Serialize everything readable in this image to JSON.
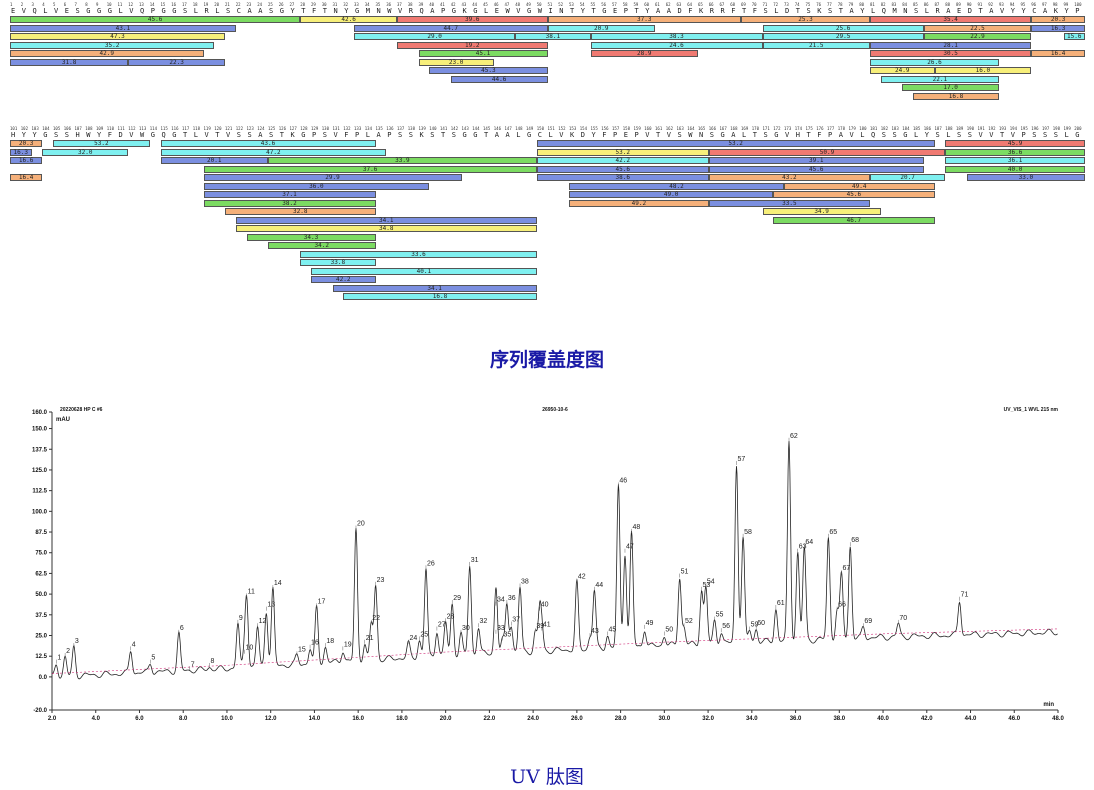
{
  "coverage": {
    "title": "序列覆盖度图",
    "colors": {
      "green": "#7cdb62",
      "yellow": "#f7ef7a",
      "red": "#f07a72",
      "blue": "#7b8fe0",
      "cyan": "#7ff0f0",
      "orange": "#f5b07a"
    },
    "rows": [
      {
        "start": 1,
        "end": 100,
        "sequence": "EVQLVESGGGLVQPGGSLRLSCAASGYTFTNYGMNWVRQAPGKGLEWVGWINTYTGEPTYAADFKRRFTFSLDTSKSTAYLQMNSLRAEDTAVYYCAKYP",
        "peptides": [
          {
            "s": 1,
            "e": 27,
            "v": "45.6",
            "c": "green",
            "l": 0
          },
          {
            "s": 28,
            "e": 36,
            "v": "42.6",
            "c": "yellow",
            "l": 0
          },
          {
            "s": 37,
            "e": 50,
            "v": "39.6",
            "c": "red",
            "l": 0
          },
          {
            "s": 51,
            "e": 68,
            "v": "37.3",
            "c": "orange",
            "l": 0
          },
          {
            "s": 69,
            "e": 80,
            "v": "25.3",
            "c": "orange",
            "l": 0
          },
          {
            "s": 81,
            "e": 95,
            "v": "35.4",
            "c": "red",
            "l": 0
          },
          {
            "s": 96,
            "e": 100,
            "v": "20.3",
            "c": "orange",
            "l": 0
          },
          {
            "s": 1,
            "e": 21,
            "v": "43.1",
            "c": "blue",
            "l": 1
          },
          {
            "s": 33,
            "e": 50,
            "v": "44.7",
            "c": "blue",
            "l": 1
          },
          {
            "s": 51,
            "e": 60,
            "v": "20.9",
            "c": "cyan",
            "l": 1
          },
          {
            "s": 71,
            "e": 85,
            "v": "25.6",
            "c": "cyan",
            "l": 1
          },
          {
            "s": 86,
            "e": 95,
            "v": "22.5",
            "c": "orange",
            "l": 1
          },
          {
            "s": 96,
            "e": 100,
            "v": "16.3",
            "c": "blue",
            "l": 1
          },
          {
            "s": 1,
            "e": 20,
            "v": "47.3",
            "c": "yellow",
            "l": 2
          },
          {
            "s": 33,
            "e": 47,
            "v": "29.0",
            "c": "cyan",
            "l": 2
          },
          {
            "s": 48,
            "e": 54,
            "v": "38.1",
            "c": "cyan",
            "l": 2
          },
          {
            "s": 55,
            "e": 70,
            "v": "38.3",
            "c": "cyan",
            "l": 2
          },
          {
            "s": 71,
            "e": 85,
            "v": "29.5",
            "c": "cyan",
            "l": 2
          },
          {
            "s": 86,
            "e": 95,
            "v": "22.9",
            "c": "green",
            "l": 2
          },
          {
            "s": 99,
            "e": 100,
            "v": "15.6",
            "c": "cyan",
            "l": 2
          },
          {
            "s": 1,
            "e": 19,
            "v": "35.2",
            "c": "cyan",
            "l": 3
          },
          {
            "s": 37,
            "e": 50,
            "v": "19.2",
            "c": "red",
            "l": 3
          },
          {
            "s": 55,
            "e": 70,
            "v": "24.6",
            "c": "cyan",
            "l": 3
          },
          {
            "s": 71,
            "e": 80,
            "v": "21.5",
            "c": "cyan",
            "l": 3
          },
          {
            "s": 81,
            "e": 95,
            "v": "28.1",
            "c": "blue",
            "l": 3
          },
          {
            "s": 1,
            "e": 18,
            "v": "42.9",
            "c": "orange",
            "l": 4
          },
          {
            "s": 39,
            "e": 50,
            "v": "45.1",
            "c": "green",
            "l": 4
          },
          {
            "s": 55,
            "e": 64,
            "v": "28.9",
            "c": "red",
            "l": 4
          },
          {
            "s": 81,
            "e": 95,
            "v": "30.5",
            "c": "red",
            "l": 4
          },
          {
            "s": 96,
            "e": 100,
            "v": "16.4",
            "c": "orange",
            "l": 4
          },
          {
            "s": 1,
            "e": 11,
            "v": "31.8",
            "c": "blue",
            "l": 5
          },
          {
            "s": 12,
            "e": 20,
            "v": "22.3",
            "c": "blue",
            "l": 5
          },
          {
            "s": 39,
            "e": 45,
            "v": "23.0",
            "c": "yellow",
            "l": 5
          },
          {
            "s": 81,
            "e": 92,
            "v": "26.6",
            "c": "cyan",
            "l": 5
          },
          {
            "s": 40,
            "e": 50,
            "v": "45.3",
            "c": "blue",
            "l": 6
          },
          {
            "s": 81,
            "e": 86,
            "v": "24.9",
            "c": "yellow",
            "l": 6
          },
          {
            "s": 87,
            "e": 95,
            "v": "16.0",
            "c": "yellow",
            "l": 6
          },
          {
            "s": 42,
            "e": 50,
            "v": "44.6",
            "c": "blue",
            "l": 7
          },
          {
            "s": 82,
            "e": 92,
            "v": "22.1",
            "c": "cyan",
            "l": 7
          },
          {
            "s": 84,
            "e": 92,
            "v": "17.0",
            "c": "green",
            "l": 8
          },
          {
            "s": 85,
            "e": 92,
            "v": "16.8",
            "c": "orange",
            "l": 9
          }
        ]
      },
      {
        "start": 101,
        "end": 200,
        "sequence": "HYYGSSHWYFDVWGQGTLVTVSSASTKGPSVFPLAPSSKSTSGGTAALGCLVKDYFPEPVTVSWNSGALTSGVHTFPAVLQSSGLYSLSSVVTVPSSSLG",
        "peptides": [
          {
            "s": 101,
            "e": 103,
            "v": "20.3",
            "c": "orange",
            "l": 0
          },
          {
            "s": 105,
            "e": 113,
            "v": "53.2",
            "c": "cyan",
            "l": 0
          },
          {
            "s": 115,
            "e": 134,
            "v": "43.6",
            "c": "cyan",
            "l": 0
          },
          {
            "s": 150,
            "e": 186,
            "v": "53.2",
            "c": "blue",
            "l": 0
          },
          {
            "s": 188,
            "e": 200,
            "v": "45.9",
            "c": "red",
            "l": 0
          },
          {
            "s": 101,
            "e": 102,
            "v": "16.3",
            "c": "blue",
            "l": 1
          },
          {
            "s": 104,
            "e": 111,
            "v": "32.0",
            "c": "cyan",
            "l": 1
          },
          {
            "s": 115,
            "e": 135,
            "v": "47.2",
            "c": "cyan",
            "l": 1
          },
          {
            "s": 150,
            "e": 165,
            "v": "53.2",
            "c": "yellow",
            "l": 1
          },
          {
            "s": 166,
            "e": 187,
            "v": "50.9",
            "c": "red",
            "l": 1
          },
          {
            "s": 188,
            "e": 200,
            "v": "36.6",
            "c": "green",
            "l": 1
          },
          {
            "s": 101,
            "e": 103,
            "v": "16.6",
            "c": "blue",
            "l": 2
          },
          {
            "s": 115,
            "e": 124,
            "v": "20.1",
            "c": "blue",
            "l": 2
          },
          {
            "s": 125,
            "e": 149,
            "v": "33.9",
            "c": "green",
            "l": 2
          },
          {
            "s": 150,
            "e": 165,
            "v": "42.2",
            "c": "cyan",
            "l": 2
          },
          {
            "s": 166,
            "e": 185,
            "v": "39.1",
            "c": "blue",
            "l": 2
          },
          {
            "s": 188,
            "e": 200,
            "v": "36.1",
            "c": "cyan",
            "l": 2
          },
          {
            "s": 119,
            "e": 149,
            "v": "37.6",
            "c": "green",
            "l": 3
          },
          {
            "s": 150,
            "e": 165,
            "v": "45.6",
            "c": "blue",
            "l": 3
          },
          {
            "s": 166,
            "e": 185,
            "v": "45.6",
            "c": "blue",
            "l": 3
          },
          {
            "s": 188,
            "e": 200,
            "v": "40.0",
            "c": "green",
            "l": 3
          },
          {
            "s": 101,
            "e": 103,
            "v": "16.4",
            "c": "orange",
            "l": 4
          },
          {
            "s": 119,
            "e": 142,
            "v": "29.9",
            "c": "blue",
            "l": 4
          },
          {
            "s": 150,
            "e": 165,
            "v": "38.6",
            "c": "blue",
            "l": 4
          },
          {
            "s": 166,
            "e": 180,
            "v": "43.2",
            "c": "orange",
            "l": 4
          },
          {
            "s": 181,
            "e": 187,
            "v": "20.7",
            "c": "cyan",
            "l": 4
          },
          {
            "s": 190,
            "e": 200,
            "v": "33.0",
            "c": "blue",
            "l": 4
          },
          {
            "s": 119,
            "e": 139,
            "v": "36.0",
            "c": "blue",
            "l": 5
          },
          {
            "s": 153,
            "e": 172,
            "v": "48.2",
            "c": "blue",
            "l": 5
          },
          {
            "s": 173,
            "e": 186,
            "v": "49.4",
            "c": "orange",
            "l": 5
          },
          {
            "s": 119,
            "e": 134,
            "v": "37.1",
            "c": "blue",
            "l": 6
          },
          {
            "s": 153,
            "e": 171,
            "v": "49.0",
            "c": "blue",
            "l": 6
          },
          {
            "s": 172,
            "e": 186,
            "v": "45.6",
            "c": "orange",
            "l": 6
          },
          {
            "s": 119,
            "e": 134,
            "v": "38.2",
            "c": "green",
            "l": 7
          },
          {
            "s": 153,
            "e": 165,
            "v": "49.2",
            "c": "orange",
            "l": 7
          },
          {
            "s": 166,
            "e": 180,
            "v": "33.5",
            "c": "blue",
            "l": 7
          },
          {
            "s": 121,
            "e": 134,
            "v": "32.8",
            "c": "orange",
            "l": 8
          },
          {
            "s": 171,
            "e": 181,
            "v": "34.9",
            "c": "yellow",
            "l": 8
          },
          {
            "s": 122,
            "e": 149,
            "v": "34.1",
            "c": "blue",
            "l": 9
          },
          {
            "s": 172,
            "e": 186,
            "v": "46.7",
            "c": "green",
            "l": 9
          },
          {
            "s": 122,
            "e": 149,
            "v": "34.8",
            "c": "yellow",
            "l": 10
          },
          {
            "s": 123,
            "e": 134,
            "v": "34.3",
            "c": "green",
            "l": 11
          },
          {
            "s": 125,
            "e": 134,
            "v": "34.2",
            "c": "green",
            "l": 12
          },
          {
            "s": 128,
            "e": 149,
            "v": "33.6",
            "c": "cyan",
            "l": 13
          },
          {
            "s": 128,
            "e": 134,
            "v": "33.8",
            "c": "cyan",
            "l": 14
          },
          {
            "s": 129,
            "e": 149,
            "v": "40.1",
            "c": "cyan",
            "l": 15
          },
          {
            "s": 129,
            "e": 134,
            "v": "42.2",
            "c": "blue",
            "l": 16
          },
          {
            "s": 131,
            "e": 149,
            "v": "34.1",
            "c": "blue",
            "l": 17
          },
          {
            "s": 132,
            "e": 149,
            "v": "16.8",
            "c": "cyan",
            "l": 18
          }
        ]
      }
    ]
  },
  "uv": {
    "title": "UV 肽图",
    "header_left": "20220628 HP C #6",
    "header_mid": "26950-10-6",
    "header_right": "UV_VIS_1 WVL 215 nm",
    "yunit": "mAU",
    "xunit": "min"
  },
  "chart_data": {
    "type": "line",
    "title": "UV 肽图",
    "xlabel": "min",
    "ylabel": "mAU",
    "xlim": [
      2.0,
      48.0
    ],
    "ylim": [
      -20.0,
      160.0
    ],
    "xticks": [
      "2.0",
      "4.0",
      "6.0",
      "8.0",
      "10.0",
      "12.0",
      "14.0",
      "16.0",
      "18.0",
      "20.0",
      "22.0",
      "24.0",
      "26.0",
      "28.0",
      "30.0",
      "32.0",
      "34.0",
      "36.0",
      "38.0",
      "40.0",
      "42.0",
      "44.0",
      "46.0",
      "48.0"
    ],
    "yticks": [
      "-20.0",
      "0.0",
      "12.5",
      "25.0",
      "37.5",
      "50.0",
      "62.5",
      "75.0",
      "87.5",
      "100.0",
      "112.5",
      "125.0",
      "137.5",
      "150.0",
      "160.0"
    ],
    "baseline": [
      [
        2.0,
        0
      ],
      [
        10.0,
        5
      ],
      [
        20.0,
        13
      ],
      [
        30.0,
        19
      ],
      [
        40.0,
        24
      ],
      [
        48.0,
        27
      ]
    ],
    "peaks": [
      {
        "id": "1",
        "x": 2.2,
        "y": 8
      },
      {
        "id": "2",
        "x": 2.6,
        "y": 12
      },
      {
        "id": "3",
        "x": 3.0,
        "y": 18
      },
      {
        "id": "4",
        "x": 5.6,
        "y": 16
      },
      {
        "id": "5",
        "x": 6.5,
        "y": 8
      },
      {
        "id": "6",
        "x": 7.8,
        "y": 26
      },
      {
        "id": "7",
        "x": 8.3,
        "y": 4
      },
      {
        "id": "8",
        "x": 9.2,
        "y": 6
      },
      {
        "id": "9",
        "x": 10.5,
        "y": 32
      },
      {
        "id": "10",
        "x": 10.8,
        "y": 14
      },
      {
        "id": "11",
        "x": 10.9,
        "y": 48
      },
      {
        "id": "12",
        "x": 11.4,
        "y": 30
      },
      {
        "id": "13",
        "x": 11.8,
        "y": 40
      },
      {
        "id": "14",
        "x": 12.1,
        "y": 53
      },
      {
        "id": "15",
        "x": 13.2,
        "y": 13
      },
      {
        "id": "16",
        "x": 13.8,
        "y": 17
      },
      {
        "id": "17",
        "x": 14.1,
        "y": 42
      },
      {
        "id": "18",
        "x": 14.5,
        "y": 18
      },
      {
        "id": "19",
        "x": 15.3,
        "y": 16
      },
      {
        "id": "20",
        "x": 15.9,
        "y": 89
      },
      {
        "id": "21",
        "x": 16.3,
        "y": 20
      },
      {
        "id": "22",
        "x": 16.6,
        "y": 32
      },
      {
        "id": "23",
        "x": 16.8,
        "y": 55
      },
      {
        "id": "24",
        "x": 18.3,
        "y": 20
      },
      {
        "id": "25",
        "x": 18.8,
        "y": 22
      },
      {
        "id": "26",
        "x": 19.1,
        "y": 65
      },
      {
        "id": "27",
        "x": 19.6,
        "y": 28
      },
      {
        "id": "28",
        "x": 20.0,
        "y": 33
      },
      {
        "id": "29",
        "x": 20.3,
        "y": 44
      },
      {
        "id": "30",
        "x": 20.7,
        "y": 26
      },
      {
        "id": "31",
        "x": 21.1,
        "y": 67
      },
      {
        "id": "32",
        "x": 21.5,
        "y": 30
      },
      {
        "id": "33",
        "x": 22.3,
        "y": 26
      },
      {
        "id": "34",
        "x": 22.3,
        "y": 43
      },
      {
        "id": "35",
        "x": 22.6,
        "y": 22
      },
      {
        "id": "36",
        "x": 22.8,
        "y": 44
      },
      {
        "id": "37",
        "x": 23.0,
        "y": 31
      },
      {
        "id": "38",
        "x": 23.4,
        "y": 54
      },
      {
        "id": "39",
        "x": 24.1,
        "y": 27
      },
      {
        "id": "40",
        "x": 24.3,
        "y": 40
      },
      {
        "id": "41",
        "x": 24.4,
        "y": 28
      },
      {
        "id": "42",
        "x": 26.0,
        "y": 57
      },
      {
        "id": "43",
        "x": 26.6,
        "y": 24
      },
      {
        "id": "44",
        "x": 26.8,
        "y": 52
      },
      {
        "id": "45",
        "x": 27.4,
        "y": 25
      },
      {
        "id": "46",
        "x": 27.9,
        "y": 115
      },
      {
        "id": "47",
        "x": 28.2,
        "y": 75
      },
      {
        "id": "48",
        "x": 28.5,
        "y": 87
      },
      {
        "id": "49",
        "x": 29.1,
        "y": 29
      },
      {
        "id": "50",
        "x": 30.0,
        "y": 25
      },
      {
        "id": "51",
        "x": 30.7,
        "y": 60
      },
      {
        "id": "52",
        "x": 30.9,
        "y": 30
      },
      {
        "id": "53",
        "x": 31.7,
        "y": 52
      },
      {
        "id": "54",
        "x": 31.9,
        "y": 54
      },
      {
        "id": "55",
        "x": 32.3,
        "y": 34
      },
      {
        "id": "56",
        "x": 32.6,
        "y": 27
      },
      {
        "id": "57",
        "x": 33.3,
        "y": 128
      },
      {
        "id": "58",
        "x": 33.6,
        "y": 84
      },
      {
        "id": "59",
        "x": 33.9,
        "y": 28
      },
      {
        "id": "60",
        "x": 34.2,
        "y": 29
      },
      {
        "id": "61",
        "x": 35.1,
        "y": 41
      },
      {
        "id": "62",
        "x": 35.7,
        "y": 142
      },
      {
        "id": "63",
        "x": 36.1,
        "y": 75
      },
      {
        "id": "64",
        "x": 36.4,
        "y": 78
      },
      {
        "id": "65",
        "x": 37.5,
        "y": 84
      },
      {
        "id": "66",
        "x": 37.9,
        "y": 40
      },
      {
        "id": "67",
        "x": 38.1,
        "y": 62
      },
      {
        "id": "68",
        "x": 38.5,
        "y": 79
      },
      {
        "id": "69",
        "x": 39.1,
        "y": 30
      },
      {
        "id": "70",
        "x": 40.7,
        "y": 32
      },
      {
        "id": "71",
        "x": 43.5,
        "y": 46
      }
    ]
  }
}
